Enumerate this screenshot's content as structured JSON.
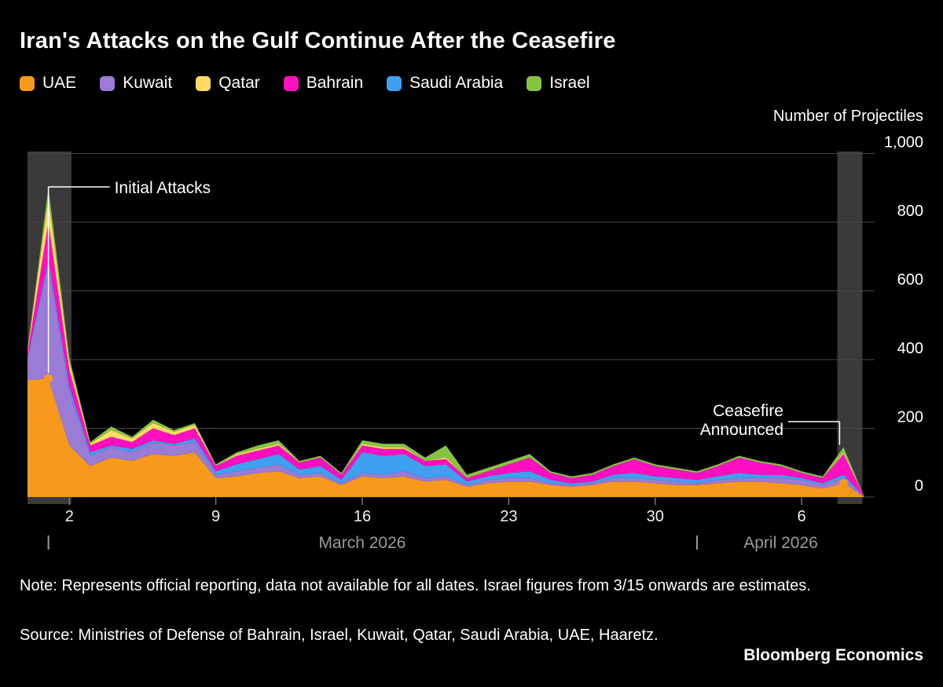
{
  "page": {
    "background": "#000000"
  },
  "header": {
    "title": "Iran's Attacks on the Gulf Continue After the Ceasefire"
  },
  "legend": {
    "items": [
      {
        "label": "UAE",
        "color": "#F7991D"
      },
      {
        "label": "Kuwait",
        "color": "#9A7BD6"
      },
      {
        "label": "Qatar",
        "color": "#FFDB63"
      },
      {
        "label": "Bahrain",
        "color": "#FF0FC0"
      },
      {
        "label": "Saudi Arabia",
        "color": "#3FA0F0"
      },
      {
        "label": "Israel",
        "color": "#85C442"
      }
    ]
  },
  "chart_data": {
    "type": "area",
    "stacked": true,
    "title": "Iran's Attacks on the Gulf Continue After the Ceasefire",
    "ylabel": "Number of Projectiles",
    "y_max": 1000,
    "y_ticks": [
      0,
      200,
      400,
      600,
      800,
      1000
    ],
    "y_tick_labels": [
      "0",
      "200",
      "400",
      "600",
      "800",
      "1,000"
    ],
    "grid_color": "#474747",
    "band_color": "#3A3A3A",
    "dates": [
      "2/28",
      "3/1",
      "3/2",
      "3/3",
      "3/4",
      "3/5",
      "3/6",
      "3/7",
      "3/8",
      "3/9",
      "3/10",
      "3/11",
      "3/12",
      "3/13",
      "3/14",
      "3/15",
      "3/16",
      "3/17",
      "3/18",
      "3/19",
      "3/20",
      "3/21",
      "3/22",
      "3/23",
      "3/24",
      "3/25",
      "3/26",
      "3/27",
      "3/28",
      "3/29",
      "3/30",
      "3/31",
      "4/1",
      "4/2",
      "4/3",
      "4/4",
      "4/5",
      "4/6",
      "4/7",
      "4/8",
      "4/9"
    ],
    "x_ticks": [
      {
        "index": 2,
        "label": "2"
      },
      {
        "index": 9,
        "label": "9"
      },
      {
        "index": 16,
        "label": "16"
      },
      {
        "index": 23,
        "label": "23"
      },
      {
        "index": 30,
        "label": "30"
      },
      {
        "index": 37,
        "label": "6"
      }
    ],
    "months": [
      {
        "label": "March 2026",
        "start_index": 1,
        "end_index": 31
      },
      {
        "label": "April 2026",
        "start_index": 32,
        "end_index": 40
      }
    ],
    "stack_order": [
      "UAE",
      "Kuwait",
      "Saudi Arabia",
      "Bahrain",
      "Qatar",
      "Israel"
    ],
    "series": [
      {
        "name": "UAE",
        "color": "#F7991D",
        "values": [
          340,
          345,
          150,
          90,
          115,
          105,
          125,
          120,
          130,
          55,
          60,
          70,
          75,
          55,
          60,
          35,
          60,
          55,
          60,
          45,
          50,
          30,
          40,
          45,
          45,
          35,
          30,
          35,
          45,
          45,
          40,
          35,
          35,
          40,
          45,
          45,
          40,
          35,
          25,
          40,
          0
        ]
      },
      {
        "name": "Kuwait",
        "color": "#9A7BD6",
        "values": [
          60,
          330,
          150,
          30,
          30,
          25,
          35,
          30,
          30,
          10,
          15,
          15,
          20,
          10,
          10,
          5,
          10,
          10,
          15,
          10,
          10,
          5,
          10,
          10,
          10,
          5,
          5,
          5,
          10,
          10,
          10,
          10,
          5,
          10,
          10,
          10,
          15,
          15,
          10,
          15,
          0
        ]
      },
      {
        "name": "Qatar",
        "color": "#FFDB63",
        "values": [
          5,
          70,
          20,
          5,
          20,
          10,
          15,
          10,
          10,
          0,
          5,
          5,
          5,
          0,
          0,
          0,
          5,
          5,
          5,
          0,
          5,
          0,
          0,
          0,
          0,
          0,
          0,
          0,
          0,
          0,
          0,
          0,
          0,
          0,
          0,
          0,
          0,
          0,
          0,
          5,
          0
        ]
      },
      {
        "name": "Bahrain",
        "color": "#FF0FC0",
        "values": [
          15,
          110,
          50,
          20,
          25,
          20,
          35,
          25,
          30,
          15,
          25,
          25,
          25,
          20,
          25,
          15,
          20,
          20,
          15,
          15,
          15,
          10,
          15,
          25,
          40,
          20,
          15,
          20,
          25,
          40,
          30,
          25,
          20,
          30,
          45,
          35,
          25,
          15,
          15,
          60,
          0
        ]
      },
      {
        "name": "Saudi Arabia",
        "color": "#3FA0F0",
        "values": [
          5,
          15,
          20,
          10,
          5,
          10,
          5,
          5,
          10,
          10,
          20,
          25,
          30,
          15,
          20,
          10,
          60,
          55,
          50,
          35,
          35,
          10,
          10,
          15,
          20,
          10,
          5,
          5,
          10,
          15,
          10,
          10,
          10,
          10,
          15,
          10,
          10,
          5,
          5,
          10,
          0
        ]
      },
      {
        "name": "Israel",
        "color": "#85C442",
        "values": [
          5,
          30,
          15,
          5,
          10,
          5,
          10,
          5,
          5,
          5,
          5,
          10,
          10,
          5,
          5,
          5,
          10,
          10,
          10,
          10,
          35,
          10,
          10,
          10,
          10,
          5,
          5,
          5,
          5,
          5,
          5,
          5,
          5,
          5,
          5,
          5,
          5,
          5,
          5,
          15,
          0
        ]
      }
    ],
    "markers": [
      {
        "series": "UAE",
        "index": 1
      },
      {
        "series": "UAE",
        "index": 39
      }
    ],
    "highlight_bands": [
      {
        "from_index": 0,
        "to_index": 2.1
      },
      {
        "from_index": 38.7,
        "to_index": 39.9
      }
    ],
    "annotations": [
      {
        "id": "initial-attacks",
        "text": "Initial Attacks",
        "index": 1
      },
      {
        "id": "ceasefire-announced",
        "text_lines": [
          "Ceasefire",
          "Announced"
        ],
        "index": 39
      }
    ]
  },
  "footer": {
    "note": "Note: Represents official reporting, data not available for all dates. Israel figures from 3/15 onwards are estimates.",
    "source": "Source: Ministries of Defense of Bahrain, Israel, Kuwait, Qatar, Saudi Arabia, UAE, Haaretz.",
    "brand": "Bloomberg Economics"
  }
}
